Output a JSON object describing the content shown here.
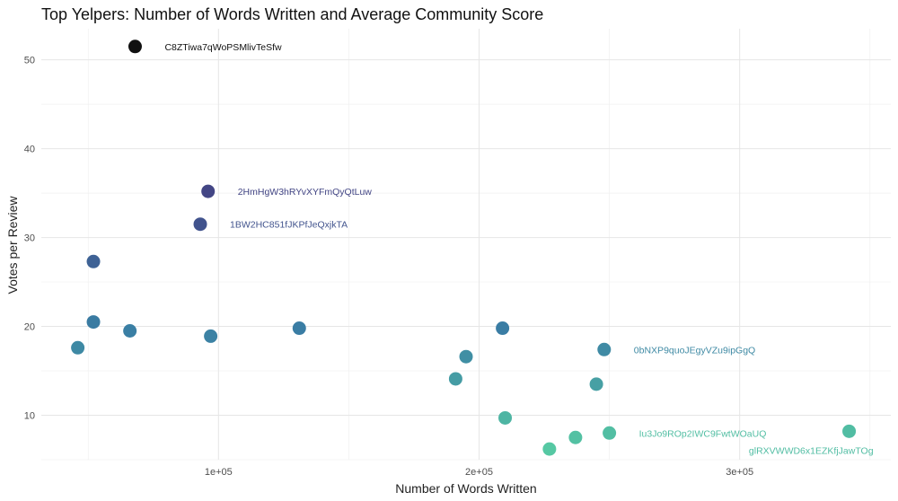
{
  "chart_data": {
    "type": "scatter",
    "title": "Top Yelpers: Number of Words Written and Average Community Score",
    "xlabel": "Number of Words Written",
    "ylabel": "Votes per Review",
    "xlim": [
      32000,
      358000
    ],
    "ylim": [
      5,
      53.5
    ],
    "x_ticks": [
      {
        "value": 100000,
        "label": "1e+05"
      },
      {
        "value": 200000,
        "label": "2e+05"
      },
      {
        "value": 300000,
        "label": "3e+05"
      }
    ],
    "y_ticks": [
      {
        "value": 10,
        "label": "10"
      },
      {
        "value": 20,
        "label": "20"
      },
      {
        "value": 30,
        "label": "30"
      },
      {
        "value": 40,
        "label": "40"
      },
      {
        "value": 50,
        "label": "50"
      }
    ],
    "grid": true,
    "legend": "none",
    "color_scale": {
      "low": "#56c9a3",
      "high": "#111111",
      "low_value": 6,
      "high_value": 51.5
    },
    "points": [
      {
        "x": 68000,
        "y": 51.5,
        "label": "C8ZTiwa7qWoPSMlivTeSfw"
      },
      {
        "x": 96000,
        "y": 35.2,
        "label": "2HmHgW3hRYvXYFmQyQtLuw"
      },
      {
        "x": 93000,
        "y": 31.5,
        "label": "1BW2HC851fJKPfJeQxjkTA"
      },
      {
        "x": 52000,
        "y": 27.3,
        "label": ""
      },
      {
        "x": 52000,
        "y": 20.5,
        "label": ""
      },
      {
        "x": 66000,
        "y": 19.5,
        "label": ""
      },
      {
        "x": 46000,
        "y": 17.6,
        "label": ""
      },
      {
        "x": 97000,
        "y": 18.9,
        "label": ""
      },
      {
        "x": 131000,
        "y": 19.8,
        "label": ""
      },
      {
        "x": 209000,
        "y": 19.8,
        "label": ""
      },
      {
        "x": 195000,
        "y": 16.6,
        "label": ""
      },
      {
        "x": 191000,
        "y": 14.1,
        "label": ""
      },
      {
        "x": 248000,
        "y": 17.4,
        "label": "0bNXP9quoJEgyVZu9ipGgQ"
      },
      {
        "x": 245000,
        "y": 13.5,
        "label": ""
      },
      {
        "x": 210000,
        "y": 9.7,
        "label": ""
      },
      {
        "x": 250000,
        "y": 8.0,
        "label": "Iu3Jo9ROp2IWC9FwtWOaUQ"
      },
      {
        "x": 237000,
        "y": 7.5,
        "label": ""
      },
      {
        "x": 227000,
        "y": 6.2,
        "label": ""
      },
      {
        "x": 342000,
        "y": 8.2,
        "label": "glRXVWWD6x1EZKfjJawTOg"
      }
    ]
  }
}
